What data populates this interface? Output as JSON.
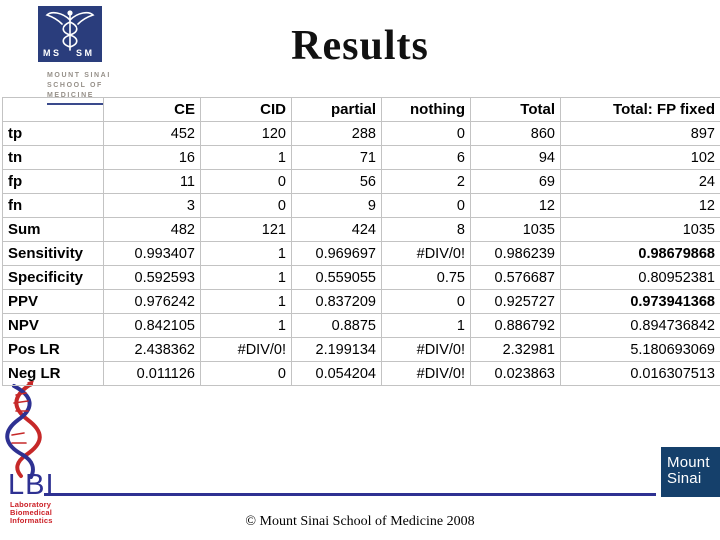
{
  "slide": {
    "title": "Results",
    "footer": "© Mount Sinai School of Medicine 2008"
  },
  "colors": {
    "header_logo_navy": "#2a3d7c",
    "lbi_blue": "#2e3192",
    "lbi_red": "#cc2027",
    "sinai_navy": "#15406b",
    "table_grid": "#c3c3c3",
    "wordmark_gray": "#969089"
  },
  "header_logo": {
    "monogram_left": "M S",
    "monogram_right": "S M",
    "lines": [
      "MOUNT SINAI",
      "SCHOOL OF",
      "MEDICINE"
    ]
  },
  "lbi_logo": {
    "acronym": "LBI",
    "lines": [
      "Laboratory",
      "Biomedical",
      "Informatics"
    ]
  },
  "sinai_logo": {
    "line1": "Mount",
    "line2": "Sinai"
  },
  "chart_data": {
    "type": "table",
    "title": "Results",
    "columns": [
      "",
      "CE",
      "CID",
      "partial",
      "nothing",
      "Total",
      "Total: FP fixed"
    ],
    "rows": [
      {
        "label": "tp",
        "values": [
          "452",
          "120",
          "288",
          "0",
          "860",
          "897"
        ],
        "bold_values": []
      },
      {
        "label": "tn",
        "values": [
          "16",
          "1",
          "71",
          "6",
          "94",
          "102"
        ],
        "bold_values": []
      },
      {
        "label": "fp",
        "values": [
          "11",
          "0",
          "56",
          "2",
          "69",
          "24"
        ],
        "bold_values": []
      },
      {
        "label": "fn",
        "values": [
          "3",
          "0",
          "9",
          "0",
          "12",
          "12"
        ],
        "bold_values": []
      },
      {
        "label": "Sum",
        "values": [
          "482",
          "121",
          "424",
          "8",
          "1035",
          "1035"
        ],
        "bold_values": []
      },
      {
        "label": "Sensitivity",
        "values": [
          "0.993407",
          "1",
          "0.969697",
          "#DIV/0!",
          "0.986239",
          "0.98679868"
        ],
        "bold_values": [
          5
        ]
      },
      {
        "label": "Specificity",
        "values": [
          "0.592593",
          "1",
          "0.559055",
          "0.75",
          "0.576687",
          "0.80952381"
        ],
        "bold_values": []
      },
      {
        "label": "PPV",
        "values": [
          "0.976242",
          "1",
          "0.837209",
          "0",
          "0.925727",
          "0.973941368"
        ],
        "bold_values": [
          5
        ]
      },
      {
        "label": "NPV",
        "values": [
          "0.842105",
          "1",
          "0.8875",
          "1",
          "0.886792",
          "0.894736842"
        ],
        "bold_values": []
      },
      {
        "label": "Pos LR",
        "values": [
          "2.438362",
          "#DIV/0!",
          "2.199134",
          "#DIV/0!",
          "2.32981",
          "5.180693069"
        ],
        "bold_values": []
      },
      {
        "label": "Neg LR",
        "values": [
          "0.011126",
          "0",
          "0.054204",
          "#DIV/0!",
          "0.023863",
          "0.016307513"
        ],
        "bold_values": []
      }
    ]
  }
}
